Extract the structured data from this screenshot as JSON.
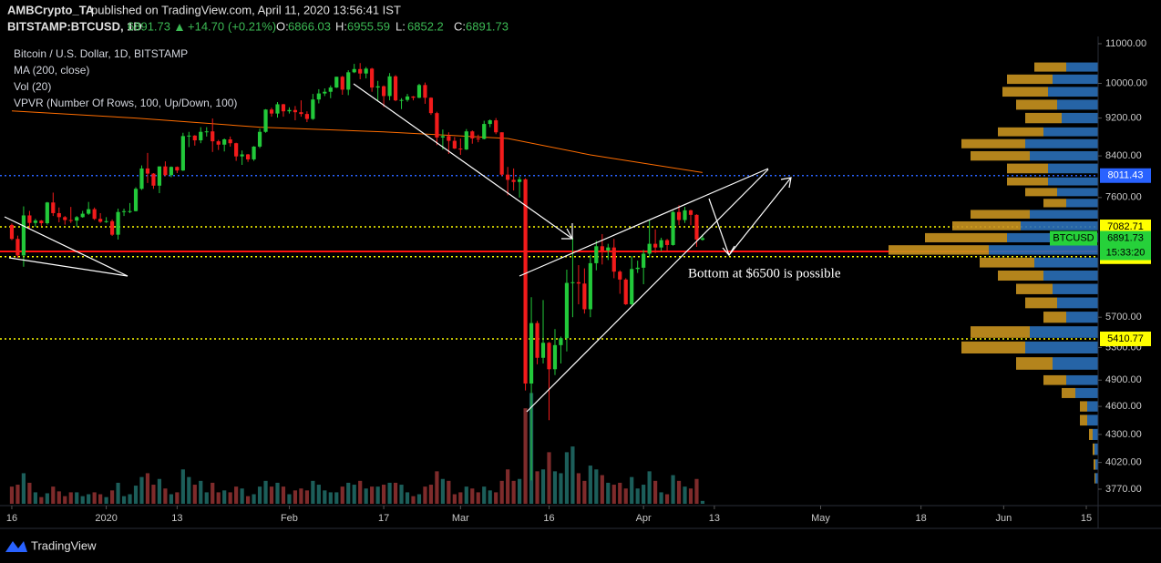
{
  "header": {
    "author": "AMBCrypto_TA",
    "published": "published on TradingView.com, April 11, 2020 13:56:41 IST"
  },
  "footer": {
    "brand": "TradingView"
  },
  "chart_data": {
    "type": "candlestick",
    "symbol": "BITSTAMP:BTCUSD, 1D",
    "change": {
      "value": 14.7,
      "label": "+14.70"
    },
    "change_pct": {
      "value": 0.21,
      "label": "(+0.21%)"
    },
    "ohlc_labels": [
      "O:",
      "H:",
      "L:",
      "C:"
    ],
    "title": "Bitcoin / U.S. Dollar, 1D, BITSTAMP",
    "indicators": [
      "MA (200, close)",
      "Vol (20)",
      "VPVR (Number Of Rows, 100, Up/Down, 100)"
    ],
    "annotation": "Bottom at $6500 is possible",
    "price_tag": "BTCUSD",
    "countdown": "15:33:20",
    "log_scale": true,
    "up_color": "#22c93a",
    "down_color": "#f21b1b",
    "volume_up_color": "#1c5e5a",
    "volume_down_color": "#7e2b2b",
    "xlim": [
      "2019-12-14",
      "2020-06-17"
    ],
    "xticks": [
      {
        "value": "2019-12-16",
        "label": "16"
      },
      {
        "value": "2020-01-01",
        "label": "2020"
      },
      {
        "value": "2020-01-13",
        "label": "13"
      },
      {
        "value": "2020-02-01",
        "label": "Feb"
      },
      {
        "value": "2020-02-17",
        "label": "17"
      },
      {
        "value": "2020-03-01",
        "label": "Mar"
      },
      {
        "value": "2020-03-16",
        "label": "16"
      },
      {
        "value": "2020-04-01",
        "label": "Apr"
      },
      {
        "value": "2020-04-13",
        "label": "13"
      },
      {
        "value": "2020-05-01",
        "label": "May"
      },
      {
        "value": "2020-05-18",
        "label": "18"
      },
      {
        "value": "2020-06-01",
        "label": "Jun"
      },
      {
        "value": "2020-06-15",
        "label": "15"
      }
    ],
    "ylim": [
      3624,
      11194
    ],
    "yticks": [
      {
        "value": 11000,
        "label": "11000.00"
      },
      {
        "value": 10000,
        "label": "10000.00"
      },
      {
        "value": 9200,
        "label": "9200.00"
      },
      {
        "value": 8400,
        "label": "8400.00"
      },
      {
        "value": 7600,
        "label": "7600.00"
      },
      {
        "value": 5700,
        "label": "5700.00"
      },
      {
        "value": 5300,
        "label": "5300.00"
      },
      {
        "value": 4900,
        "label": "4900.00"
      },
      {
        "value": 4600,
        "label": "4600.00"
      },
      {
        "value": 4300,
        "label": "4300.00"
      },
      {
        "value": 4020,
        "label": "4020.00"
      },
      {
        "value": 3770,
        "label": "3770.00"
      }
    ],
    "levels": [
      {
        "value": 8011.43,
        "color": "#2962ff",
        "text_color": "#ffffff",
        "style": "dotted"
      },
      {
        "value": 7082.71,
        "color": "#ffff00",
        "text_color": "#000000",
        "style": "dotted"
      },
      {
        "value": 6676.46,
        "color": "#ff1010",
        "text_color": "#ffffff",
        "style": "solid"
      },
      {
        "value": 6592.25,
        "color": "#ffff00",
        "text_color": "#000000",
        "style": "dotted"
      },
      {
        "value": 5410.77,
        "color": "#ffff00",
        "text_color": "#000000",
        "style": "dotted"
      }
    ],
    "last_color": "#26d13a",
    "vlim": [
      0,
      62000
    ],
    "ma": {
      "color": "#ff6d00",
      "points": [
        [
          "2019-12-16",
          9360
        ],
        [
          "2020-01-06",
          9200
        ],
        [
          "2020-01-27",
          9000
        ],
        [
          "2020-02-17",
          8900
        ],
        [
          "2020-03-09",
          8760
        ],
        [
          "2020-03-23",
          8420
        ],
        [
          "2020-04-11",
          8070
        ]
      ]
    },
    "vpvr": {
      "up_color": "#2a6fb8",
      "down_color": "#c8921f",
      "levels": [
        10400,
        10100,
        9800,
        9500,
        9200,
        8900,
        8650,
        8400,
        8150,
        7900,
        7700,
        7500,
        7300,
        7100,
        6900,
        6700,
        6500,
        6300,
        6100,
        5900,
        5700,
        5500,
        5300,
        5100,
        4900,
        4750,
        4600,
        4450,
        4300,
        4150,
        4000,
        3870
      ],
      "up": [
        35,
        50,
        55,
        45,
        40,
        60,
        80,
        75,
        55,
        55,
        45,
        35,
        75,
        85,
        100,
        120,
        70,
        60,
        50,
        45,
        35,
        75,
        80,
        50,
        35,
        25,
        12,
        12,
        6,
        4,
        3,
        3
      ],
      "down": [
        35,
        50,
        50,
        45,
        40,
        50,
        70,
        65,
        45,
        45,
        35,
        25,
        65,
        75,
        90,
        110,
        60,
        50,
        40,
        35,
        25,
        65,
        70,
        40,
        25,
        15,
        8,
        8,
        4,
        2,
        2,
        1
      ]
    },
    "candles": [
      [
        "2019-12-16",
        7115,
        7140,
        6860,
        6880,
        9000
      ],
      [
        "2019-12-17",
        6880,
        6935,
        6575,
        6612,
        10000
      ],
      [
        "2019-12-18",
        6612,
        7440,
        6435,
        7280,
        16000
      ],
      [
        "2019-12-19",
        7280,
        7360,
        7040,
        7150,
        11000
      ],
      [
        "2019-12-20",
        7150,
        7220,
        7080,
        7190,
        6000
      ],
      [
        "2019-12-21",
        7190,
        7200,
        7100,
        7145,
        3500
      ],
      [
        "2019-12-22",
        7145,
        7520,
        7120,
        7510,
        5500
      ],
      [
        "2019-12-23",
        7510,
        7690,
        7270,
        7320,
        9000
      ],
      [
        "2019-12-24",
        7320,
        7420,
        7160,
        7250,
        6500
      ],
      [
        "2019-12-25",
        7250,
        7270,
        7120,
        7200,
        4000
      ],
      [
        "2019-12-26",
        7200,
        7430,
        7150,
        7190,
        6000
      ],
      [
        "2019-12-27",
        7190,
        7270,
        7080,
        7250,
        6000
      ],
      [
        "2019-12-28",
        7250,
        7360,
        7240,
        7310,
        4000
      ],
      [
        "2019-12-29",
        7310,
        7520,
        7290,
        7390,
        5000
      ],
      [
        "2019-12-30",
        7390,
        7420,
        7200,
        7220,
        6000
      ],
      [
        "2019-12-31",
        7220,
        7320,
        7150,
        7170,
        5000
      ],
      [
        "2020-01-01",
        7170,
        7250,
        7150,
        7180,
        3500
      ],
      [
        "2020-01-02",
        7180,
        7210,
        6930,
        6950,
        7000
      ],
      [
        "2020-01-03",
        6950,
        7400,
        6870,
        7340,
        11000
      ],
      [
        "2020-01-04",
        7340,
        7400,
        7270,
        7355,
        4000
      ],
      [
        "2020-01-05",
        7355,
        7500,
        7320,
        7356,
        5000
      ],
      [
        "2020-01-06",
        7356,
        7790,
        7350,
        7760,
        9500
      ],
      [
        "2020-01-07",
        7760,
        8210,
        7740,
        8150,
        14000
      ],
      [
        "2020-01-08",
        8150,
        8460,
        7870,
        8050,
        16000
      ],
      [
        "2020-01-09",
        8050,
        8060,
        7760,
        7820,
        10000
      ],
      [
        "2020-01-10",
        7820,
        8190,
        7680,
        8190,
        13000
      ],
      [
        "2020-01-11",
        8190,
        8290,
        8000,
        8020,
        8000
      ],
      [
        "2020-01-12",
        8020,
        8190,
        7980,
        8180,
        5000
      ],
      [
        "2020-01-13",
        8180,
        8190,
        8060,
        8110,
        6000
      ],
      [
        "2020-01-14",
        8110,
        8880,
        8100,
        8810,
        18000
      ],
      [
        "2020-01-15",
        8810,
        8900,
        8580,
        8820,
        14000
      ],
      [
        "2020-01-16",
        8820,
        8830,
        8610,
        8720,
        10000
      ],
      [
        "2020-01-17",
        8720,
        9000,
        8660,
        8900,
        12000
      ],
      [
        "2020-01-18",
        8900,
        9000,
        8800,
        8910,
        6000
      ],
      [
        "2020-01-19",
        8910,
        9190,
        8480,
        8700,
        11000
      ],
      [
        "2020-01-20",
        8700,
        8730,
        8520,
        8630,
        6000
      ],
      [
        "2020-01-21",
        8630,
        8760,
        8490,
        8740,
        7000
      ],
      [
        "2020-01-22",
        8740,
        8800,
        8590,
        8660,
        6000
      ],
      [
        "2020-01-23",
        8660,
        8670,
        8300,
        8390,
        9000
      ],
      [
        "2020-01-24",
        8390,
        8510,
        8220,
        8430,
        8000
      ],
      [
        "2020-01-25",
        8430,
        8440,
        8280,
        8330,
        4000
      ],
      [
        "2020-01-26",
        8330,
        8600,
        8300,
        8590,
        5000
      ],
      [
        "2020-01-27",
        8590,
        8970,
        8560,
        8900,
        9000
      ],
      [
        "2020-01-28",
        8900,
        9400,
        8880,
        9390,
        12000
      ],
      [
        "2020-01-29",
        9390,
        9430,
        9230,
        9300,
        9000
      ],
      [
        "2020-01-30",
        9300,
        9560,
        9210,
        9510,
        11000
      ],
      [
        "2020-01-31",
        9510,
        9520,
        9230,
        9350,
        9000
      ],
      [
        "2020-02-01",
        9350,
        9440,
        9300,
        9380,
        5000
      ],
      [
        "2020-02-02",
        9380,
        9470,
        9150,
        9330,
        7000
      ],
      [
        "2020-02-03",
        9330,
        9600,
        9230,
        9290,
        8000
      ],
      [
        "2020-02-04",
        9290,
        9350,
        9110,
        9180,
        7000
      ],
      [
        "2020-02-05",
        9180,
        9750,
        9160,
        9620,
        12000
      ],
      [
        "2020-02-06",
        9620,
        9860,
        9530,
        9760,
        10000
      ],
      [
        "2020-02-07",
        9760,
        9880,
        9700,
        9800,
        7000
      ],
      [
        "2020-02-08",
        9800,
        9950,
        9650,
        9900,
        6000
      ],
      [
        "2020-02-09",
        9900,
        10160,
        9890,
        10160,
        6000
      ],
      [
        "2020-02-10",
        10160,
        10180,
        9730,
        9850,
        9000
      ],
      [
        "2020-02-11",
        9850,
        10320,
        9720,
        10270,
        11000
      ],
      [
        "2020-02-12",
        10270,
        10480,
        10250,
        10350,
        10000
      ],
      [
        "2020-02-13",
        10350,
        10500,
        10100,
        10240,
        12000
      ],
      [
        "2020-02-14",
        10240,
        10400,
        10120,
        10360,
        8000
      ],
      [
        "2020-02-15",
        10360,
        10380,
        9800,
        9900,
        9000
      ],
      [
        "2020-02-16",
        9900,
        10060,
        9600,
        9930,
        9000
      ],
      [
        "2020-02-17",
        9930,
        9950,
        9450,
        9700,
        10000
      ],
      [
        "2020-02-18",
        9700,
        10250,
        9600,
        10170,
        11000
      ],
      [
        "2020-02-19",
        10170,
        10200,
        9580,
        9600,
        11000
      ],
      [
        "2020-02-20",
        9600,
        9650,
        9400,
        9610,
        10000
      ],
      [
        "2020-02-21",
        9610,
        9750,
        9570,
        9690,
        6000
      ],
      [
        "2020-02-22",
        9690,
        9700,
        9600,
        9660,
        4000
      ],
      [
        "2020-02-23",
        9660,
        9990,
        9650,
        9960,
        5000
      ],
      [
        "2020-02-24",
        9960,
        10020,
        9520,
        9660,
        9000
      ],
      [
        "2020-02-25",
        9660,
        9670,
        9270,
        9310,
        10000
      ],
      [
        "2020-02-26",
        9310,
        9340,
        8620,
        8780,
        17000
      ],
      [
        "2020-02-27",
        8780,
        8950,
        8530,
        8810,
        13000
      ],
      [
        "2020-02-28",
        8810,
        8890,
        8440,
        8710,
        12000
      ],
      [
        "2020-02-29",
        8710,
        8790,
        8540,
        8550,
        5000
      ],
      [
        "2020-03-01",
        8550,
        8760,
        8420,
        8530,
        6000
      ],
      [
        "2020-03-02",
        8530,
        8960,
        8520,
        8910,
        9000
      ],
      [
        "2020-03-03",
        8910,
        8930,
        8650,
        8760,
        8000
      ],
      [
        "2020-03-04",
        8760,
        8840,
        8680,
        8750,
        6000
      ],
      [
        "2020-03-05",
        8750,
        9140,
        8740,
        9070,
        9000
      ],
      [
        "2020-03-06",
        9070,
        9170,
        9000,
        9150,
        7000
      ],
      [
        "2020-03-07",
        9150,
        9200,
        8850,
        8890,
        6000
      ],
      [
        "2020-03-08",
        8890,
        8890,
        8000,
        8030,
        12000
      ],
      [
        "2020-03-09",
        8030,
        8180,
        7640,
        7930,
        18000
      ],
      [
        "2020-03-10",
        7930,
        8150,
        7730,
        7890,
        12000
      ],
      [
        "2020-03-11",
        7890,
        7990,
        7600,
        7940,
        13000
      ],
      [
        "2020-03-12",
        7940,
        7960,
        4780,
        4860,
        50000
      ],
      [
        "2020-03-13",
        4860,
        5980,
        3850,
        5620,
        58000
      ],
      [
        "2020-03-14",
        5620,
        5650,
        5090,
        5170,
        17000
      ],
      [
        "2020-03-15",
        5170,
        5940,
        5100,
        5360,
        18000
      ],
      [
        "2020-03-16",
        5360,
        5370,
        4450,
        5030,
        27000
      ],
      [
        "2020-03-17",
        5030,
        5540,
        4960,
        5330,
        17000
      ],
      [
        "2020-03-18",
        5330,
        5440,
        5100,
        5420,
        16000
      ],
      [
        "2020-03-19",
        5420,
        6390,
        5250,
        6190,
        27000
      ],
      [
        "2020-03-20",
        6190,
        6900,
        5700,
        6200,
        30000
      ],
      [
        "2020-03-21",
        6200,
        6460,
        5880,
        6180,
        16000
      ],
      [
        "2020-03-22",
        6180,
        6410,
        5750,
        5810,
        12000
      ],
      [
        "2020-03-23",
        5810,
        6620,
        5700,
        6490,
        20000
      ],
      [
        "2020-03-24",
        6490,
        6850,
        6380,
        6760,
        18000
      ],
      [
        "2020-03-25",
        6760,
        6960,
        6470,
        6690,
        15000
      ],
      [
        "2020-03-26",
        6690,
        6800,
        6540,
        6740,
        11000
      ],
      [
        "2020-03-27",
        6740,
        6880,
        6260,
        6360,
        10000
      ],
      [
        "2020-03-28",
        6360,
        6380,
        6030,
        6240,
        11000
      ],
      [
        "2020-03-29",
        6240,
        6260,
        5870,
        5880,
        8000
      ],
      [
        "2020-03-30",
        5880,
        6600,
        5860,
        6400,
        14000
      ],
      [
        "2020-03-31",
        6400,
        6530,
        6340,
        6420,
        8000
      ],
      [
        "2020-04-01",
        6420,
        6700,
        6170,
        6640,
        10000
      ],
      [
        "2020-04-02",
        6640,
        7200,
        6580,
        6800,
        17000
      ],
      [
        "2020-04-03",
        6800,
        7040,
        6650,
        6740,
        12000
      ],
      [
        "2020-04-04",
        6740,
        6900,
        6680,
        6860,
        6000
      ],
      [
        "2020-04-05",
        6860,
        6880,
        6670,
        6780,
        5000
      ],
      [
        "2020-04-06",
        6780,
        7360,
        6770,
        7340,
        15000
      ],
      [
        "2020-04-07",
        7340,
        7460,
        7110,
        7200,
        12000
      ],
      [
        "2020-04-08",
        7200,
        7430,
        7150,
        7370,
        9000
      ],
      [
        "2020-04-09",
        7370,
        7380,
        7110,
        7290,
        8000
      ],
      [
        "2020-04-10",
        7290,
        7300,
        6750,
        6870,
        13000
      ],
      [
        "2020-04-11",
        6866.03,
        6955.59,
        6852.2,
        6891.73,
        1500
      ]
    ]
  }
}
